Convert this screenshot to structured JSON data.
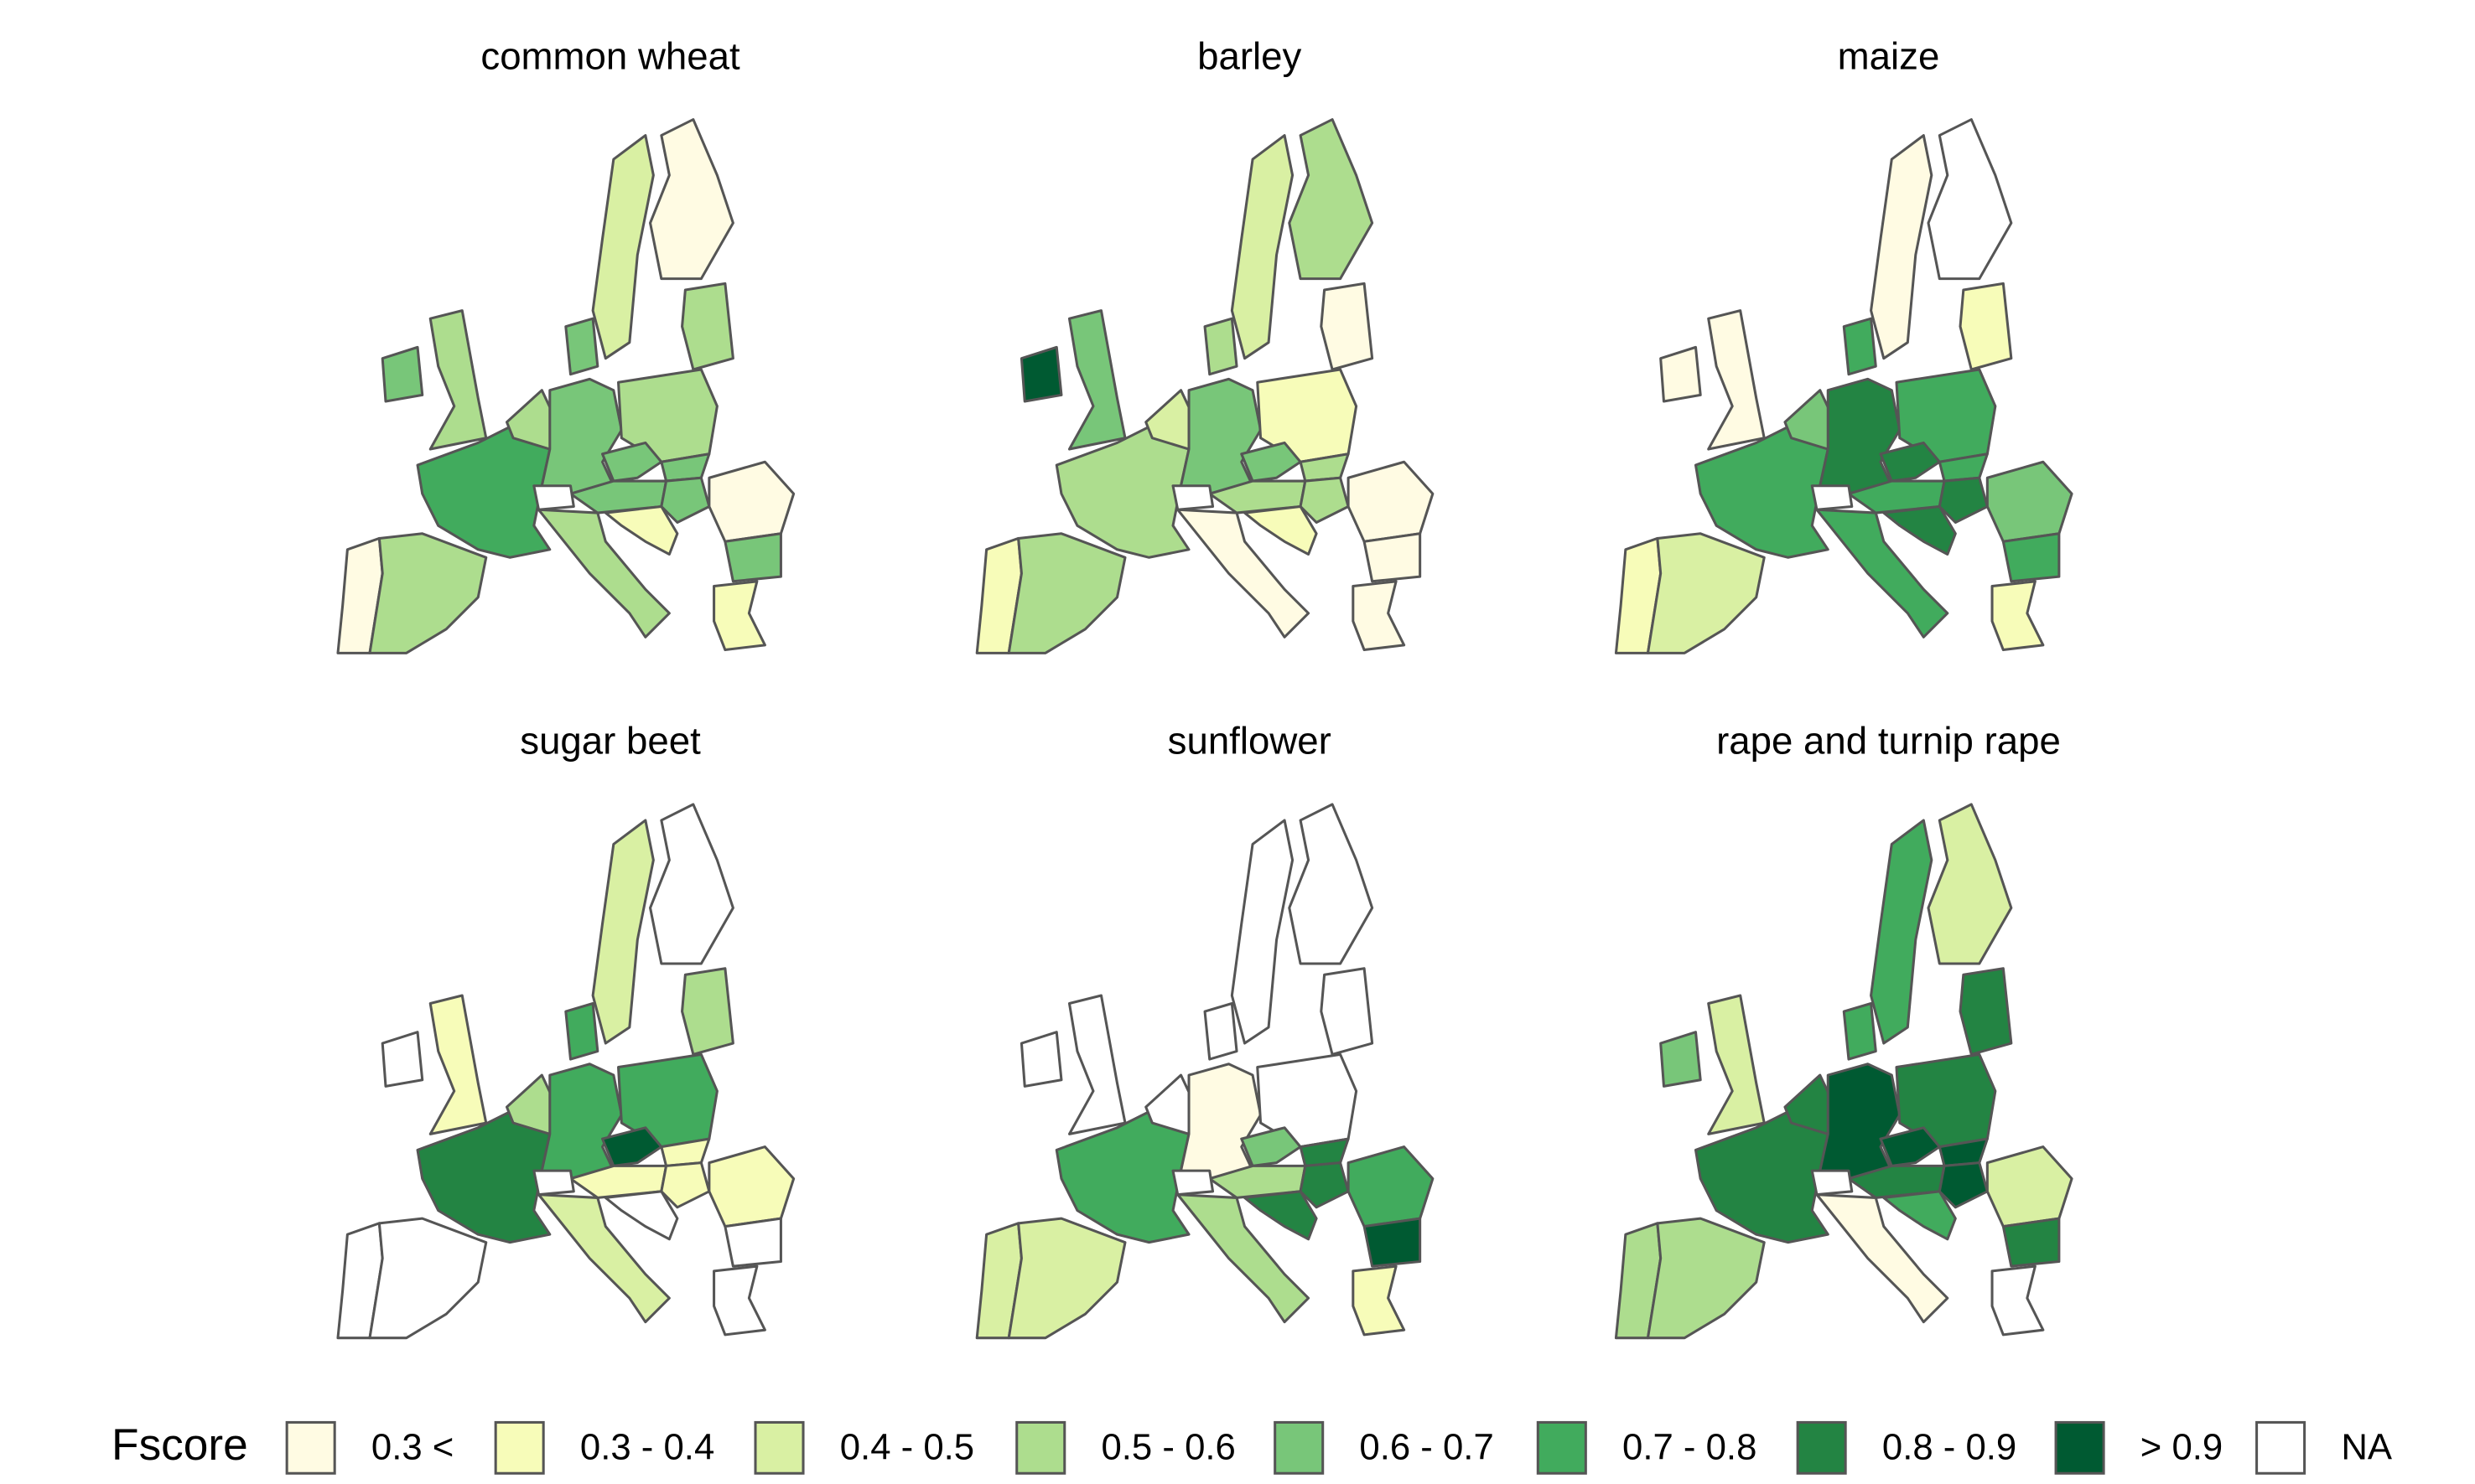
{
  "panels": [
    {
      "title": "common wheat",
      "fills": [
        "#fffbe3",
        "#addd8e",
        "#41ab5d",
        "#78c679",
        "#addd8e",
        "#addd8e",
        "#78c679",
        "#78c679",
        "#addd8e",
        "#78c679",
        "#78c679",
        "#78c679",
        "#78c679",
        "#fffbe3",
        "#78c679",
        "#addd8e",
        "#f7fcb9",
        "#f7fcb9",
        "#d9f0a3",
        "#fffbe3",
        "#addd8e",
        "#ffffff"
      ]
    },
    {
      "title": "barley",
      "fills": [
        "#f7fcb9",
        "#addd8e",
        "#addd8e",
        "#005a32",
        "#78c679",
        "#d9f0a3",
        "#78c679",
        "#addd8e",
        "#f7fcb9",
        "#78c679",
        "#addd8e",
        "#addd8e",
        "#addd8e",
        "#fffbe3",
        "#fffbe3",
        "#fffbe3",
        "#f7fcb9",
        "#fffbe3",
        "#d9f0a3",
        "#addd8e",
        "#fffbe3",
        "#ffffff"
      ]
    },
    {
      "title": "maize",
      "fills": [
        "#f7fcb9",
        "#d9f0a3",
        "#41ab5d",
        "#fffbe3",
        "#fffbe3",
        "#78c679",
        "#238443",
        "#41ab5d",
        "#41ab5d",
        "#238443",
        "#41ab5d",
        "#41ab5d",
        "#238443",
        "#78c679",
        "#41ab5d",
        "#41ab5d",
        "#238443",
        "#f7fcb9",
        "#fffbe3",
        "#ffffff",
        "#f7fcb9",
        "#ffffff"
      ]
    },
    {
      "title": "sugar beet",
      "fills": [
        "#ffffff",
        "#ffffff",
        "#238443",
        "#ffffff",
        "#f7fcb9",
        "#addd8e",
        "#41ab5d",
        "#41ab5d",
        "#41ab5d",
        "#005a32",
        "#f7fcb9",
        "#f7fcb9",
        "#f7fcb9",
        "#f7fcb9",
        "#ffffff",
        "#d9f0a3",
        "#ffffff",
        "#ffffff",
        "#d9f0a3",
        "#ffffff",
        "#addd8e",
        "#ffffff"
      ]
    },
    {
      "title": "sunflower",
      "fills": [
        "#d9f0a3",
        "#d9f0a3",
        "#41ab5d",
        "#ffffff",
        "#ffffff",
        "#ffffff",
        "#fffbe3",
        "#ffffff",
        "#ffffff",
        "#78c679",
        "#addd8e",
        "#238443",
        "#238443",
        "#41ab5d",
        "#005a32",
        "#addd8e",
        "#238443",
        "#f7fcb9",
        "#ffffff",
        "#ffffff",
        "#ffffff",
        "#ffffff"
      ]
    },
    {
      "title": "rape and turnip rape",
      "fills": [
        "#addd8e",
        "#addd8e",
        "#238443",
        "#78c679",
        "#d9f0a3",
        "#238443",
        "#005a32",
        "#41ab5d",
        "#238443",
        "#005a32",
        "#238443",
        "#005a32",
        "#005a32",
        "#d9f0a3",
        "#238443",
        "#fffbe3",
        "#41ab5d",
        "#ffffff",
        "#41ab5d",
        "#d9f0a3",
        "#238443",
        "#ffffff"
      ]
    }
  ],
  "legend": {
    "title": "Fscore",
    "items": [
      {
        "label": "0.3 <",
        "color": "#fffbe3"
      },
      {
        "label": "0.3 - 0.4",
        "color": "#f7fcb9"
      },
      {
        "label": "0.4 - 0.5",
        "color": "#d9f0a3"
      },
      {
        "label": "0.5 - 0.6",
        "color": "#addd8e"
      },
      {
        "label": "0.6 - 0.7",
        "color": "#78c679"
      },
      {
        "label": "0.7 - 0.8",
        "color": "#41ab5d"
      },
      {
        "label": "0.8 - 0.9",
        "color": "#238443"
      },
      {
        "label": "> 0.9",
        "color": "#005a32"
      },
      {
        "label": "NA",
        "color": "#ffffff"
      }
    ]
  }
}
